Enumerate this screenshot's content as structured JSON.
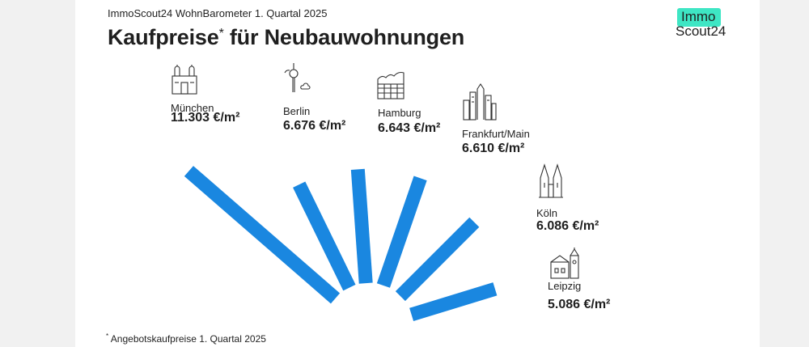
{
  "header": {
    "subtitle": "ImmoScout24 WohnBarometer 1. Quartal 2025",
    "title": "Kaufpreise",
    "title_mark": "*",
    "title_rest": " für Neubauwohnungen"
  },
  "logo": {
    "line1": "Immo",
    "line2": "Scout24"
  },
  "footnote": {
    "mark": "*",
    "text": " Angebotskaufpreise 1. Quartal 2025"
  },
  "colors": {
    "bar": "#1a87e0",
    "logo_accent": "#3ee6c4"
  },
  "chart_data": {
    "type": "bar",
    "unit": "€/m²",
    "categories": [
      "München",
      "Berlin",
      "Hamburg",
      "Frankfurt/Main",
      "Köln",
      "Leipzig"
    ],
    "values": [
      11303,
      6676,
      6643,
      6610,
      6086,
      5086
    ],
    "value_labels": [
      "11.303 €/m²",
      "6.676 €/m²",
      "6.643 €/m²",
      "6.610 €/m²",
      "6.086 €/m²",
      "5.086 €/m²"
    ],
    "icons": [
      "munich-church-icon",
      "berlin-tv-tower-icon",
      "hamburg-elbphilharmonie-icon",
      "frankfurt-skyline-icon",
      "cologne-cathedral-icon",
      "leipzig-town-hall-icon"
    ]
  }
}
